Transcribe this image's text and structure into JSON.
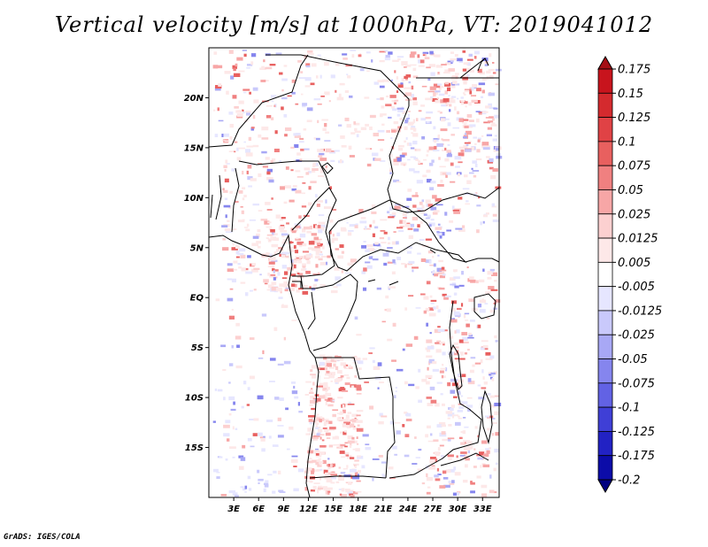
{
  "title": "Vertical velocity [m/s] at 1000hPa, VT: 2019041012",
  "footer": "GrADS: IGES/COLA",
  "map": {
    "lon_range": [
      0,
      35
    ],
    "lat_range": [
      -20,
      25
    ],
    "lat_ticks": [
      {
        "label": "20N",
        "value": 20
      },
      {
        "label": "15N",
        "value": 15
      },
      {
        "label": "10N",
        "value": 10
      },
      {
        "label": "5N",
        "value": 5
      },
      {
        "label": "EQ",
        "value": 0
      },
      {
        "label": "5S",
        "value": -5
      },
      {
        "label": "10S",
        "value": -10
      },
      {
        "label": "15S",
        "value": -15
      }
    ],
    "lon_ticks": [
      {
        "label": "3E",
        "value": 3
      },
      {
        "label": "6E",
        "value": 6
      },
      {
        "label": "9E",
        "value": 9
      },
      {
        "label": "12E",
        "value": 12
      },
      {
        "label": "15E",
        "value": 15
      },
      {
        "label": "18E",
        "value": 18
      },
      {
        "label": "21E",
        "value": 21
      },
      {
        "label": "24E",
        "value": 24
      },
      {
        "label": "27E",
        "value": 27
      },
      {
        "label": "30E",
        "value": 30
      },
      {
        "label": "33E",
        "value": 33
      }
    ]
  },
  "colorbar": {
    "labels": [
      "0.175",
      "0.15",
      "0.125",
      "0.1",
      "0.075",
      "0.05",
      "0.025",
      "0.0125",
      "0.005",
      "-0.005",
      "-0.0125",
      "-0.025",
      "-0.05",
      "-0.075",
      "-0.1",
      "-0.125",
      "-0.175",
      "-0.2"
    ],
    "colors": [
      "#a50f15",
      "#c8141d",
      "#d42a2e",
      "#e04245",
      "#e8605f",
      "#f08080",
      "#f7a6a6",
      "#fcd0d0",
      "#fde8e8",
      "#ffffff",
      "#e6e6ff",
      "#c9c9fb",
      "#a8a8f5",
      "#8585ee",
      "#6262e4",
      "#3f3fd6",
      "#2222c4",
      "#0c0ca8",
      "#000080"
    ]
  }
}
